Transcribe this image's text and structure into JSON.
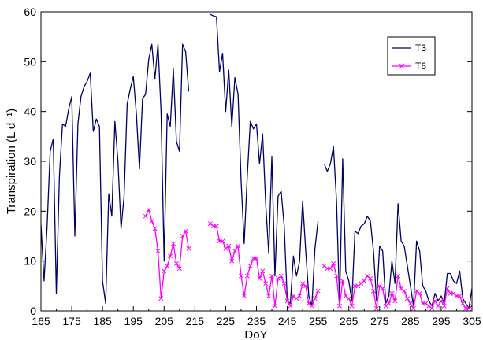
{
  "chart_data": {
    "type": "line",
    "xlabel": "DoY",
    "ylabel": "Transpiration (L d⁻¹)",
    "xlim": [
      165,
      305
    ],
    "ylim": [
      0,
      60
    ],
    "x_ticks": [
      "165",
      "175",
      "185",
      "195",
      "205",
      "215",
      "225",
      "235",
      "245",
      "255",
      "265",
      "275",
      "285",
      "295",
      "305"
    ],
    "y_ticks": [
      "0",
      "10",
      "20",
      "30",
      "40",
      "50",
      "60"
    ],
    "legend": {
      "position": "top-right"
    },
    "series": [
      {
        "name": "T3",
        "color": "#000066",
        "marker": "none",
        "segments": [
          [
            [
              165,
              17.3
            ],
            [
              166,
              6
            ],
            [
              167,
              17
            ],
            [
              168,
              32
            ],
            [
              169,
              34.5
            ],
            [
              170,
              3.5
            ],
            [
              171,
              27
            ],
            [
              172,
              37.5
            ],
            [
              173,
              37
            ],
            [
              174,
              40.5
            ],
            [
              175,
              43
            ],
            [
              176,
              15
            ],
            [
              177,
              37.5
            ],
            [
              178,
              43
            ],
            [
              179,
              45
            ],
            [
              180,
              46
            ],
            [
              181,
              47.7
            ],
            [
              182,
              36
            ],
            [
              183,
              38.5
            ],
            [
              184,
              37
            ],
            [
              185,
              6
            ],
            [
              186,
              1.5
            ],
            [
              187,
              23.5
            ],
            [
              188,
              19
            ],
            [
              189,
              38
            ],
            [
              190,
              30
            ],
            [
              191,
              16.5
            ],
            [
              192,
              23
            ],
            [
              193,
              41.5
            ],
            [
              194,
              44.5
            ],
            [
              195,
              47
            ],
            [
              196,
              39.5
            ],
            [
              197,
              28.5
            ],
            [
              198,
              42.5
            ],
            [
              199,
              43.5
            ],
            [
              200,
              50.5
            ],
            [
              201,
              53.5
            ],
            [
              202,
              46.5
            ],
            [
              203,
              53.5
            ],
            [
              204,
              40
            ],
            [
              205,
              10
            ],
            [
              206,
              39.5
            ],
            [
              207,
              37
            ],
            [
              208,
              48.5
            ],
            [
              209,
              34
            ],
            [
              210,
              32
            ],
            [
              211,
              53.5
            ],
            [
              212,
              52
            ],
            [
              213,
              44
            ]
          ],
          [
            [
              220,
              59.5
            ],
            [
              221,
              59.2
            ],
            [
              222,
              59
            ],
            [
              223,
              48
            ],
            [
              224,
              51.7
            ],
            [
              225,
              40
            ],
            [
              226,
              48.3
            ],
            [
              227,
              37
            ],
            [
              228,
              46.8
            ],
            [
              229,
              43.5
            ],
            [
              230,
              26
            ],
            [
              231,
              13.5
            ],
            [
              232,
              27
            ],
            [
              233,
              38
            ],
            [
              234,
              36.5
            ],
            [
              235,
              37.5
            ],
            [
              236,
              29.5
            ],
            [
              237,
              35.5
            ],
            [
              238,
              21.5
            ],
            [
              239,
              11.5
            ],
            [
              240,
              31
            ],
            [
              241,
              7
            ],
            [
              242,
              23
            ],
            [
              243,
              24
            ],
            [
              244,
              17
            ],
            [
              245,
              2
            ],
            [
              246,
              1.5
            ],
            [
              247,
              11
            ],
            [
              248,
              7
            ],
            [
              249,
              10
            ],
            [
              250,
              22
            ],
            [
              251,
              12
            ],
            [
              252,
              3
            ],
            [
              253,
              1
            ],
            [
              254,
              12.5
            ],
            [
              255,
              18
            ]
          ],
          [
            [
              257,
              29.5
            ],
            [
              258,
              28
            ],
            [
              259,
              29.5
            ],
            [
              260,
              33
            ],
            [
              261,
              22
            ],
            [
              262,
              1.5
            ],
            [
              263,
              30.5
            ],
            [
              264,
              8
            ],
            [
              265,
              6
            ],
            [
              266,
              2
            ],
            [
              267,
              16
            ],
            [
              268,
              15.5
            ],
            [
              269,
              17
            ],
            [
              270,
              17.5
            ],
            [
              271,
              19
            ],
            [
              272,
              18
            ],
            [
              273,
              12
            ],
            [
              274,
              2
            ],
            [
              275,
              13
            ],
            [
              276,
              12
            ],
            [
              277,
              1.5
            ],
            [
              278,
              3
            ],
            [
              279,
              10
            ],
            [
              280,
              5.5
            ],
            [
              281,
              21.5
            ],
            [
              282,
              14
            ],
            [
              283,
              13
            ],
            [
              284,
              9
            ],
            [
              285,
              5
            ],
            [
              286,
              1
            ],
            [
              287,
              14
            ],
            [
              288,
              12
            ],
            [
              289,
              5
            ],
            [
              290,
              4
            ],
            [
              291,
              2
            ],
            [
              292,
              1
            ],
            [
              293,
              3.5
            ],
            [
              294,
              2
            ],
            [
              295,
              3
            ],
            [
              296,
              1.5
            ],
            [
              297,
              7.5
            ],
            [
              298,
              7.5
            ],
            [
              299,
              6
            ],
            [
              300,
              5.5
            ],
            [
              301,
              8
            ],
            [
              302,
              2.5
            ],
            [
              303,
              1.5
            ],
            [
              304,
              0.5
            ],
            [
              305,
              4.5
            ]
          ]
        ]
      },
      {
        "name": "T6",
        "color": "#ff00ff",
        "marker": "x",
        "segments": [
          [
            [
              199,
              19
            ],
            [
              200,
              20.3
            ],
            [
              201,
              18
            ],
            [
              202,
              16.5
            ],
            [
              203,
              12
            ],
            [
              204,
              2.5
            ],
            [
              205,
              8
            ],
            [
              206,
              9
            ],
            [
              207,
              11
            ],
            [
              208,
              13.5
            ],
            [
              209,
              9.5
            ],
            [
              210,
              8.5
            ],
            [
              211,
              15
            ],
            [
              212,
              16
            ],
            [
              213,
              12.5
            ]
          ],
          [
            [
              220,
              17.5
            ],
            [
              221,
              17
            ],
            [
              222,
              17
            ],
            [
              223,
              14
            ],
            [
              224,
              14
            ],
            [
              225,
              12.5
            ],
            [
              226,
              13
            ],
            [
              227,
              10
            ],
            [
              228,
              12
            ],
            [
              229,
              13
            ],
            [
              230,
              7
            ],
            [
              231,
              3
            ],
            [
              232,
              7
            ],
            [
              233,
              9
            ],
            [
              234,
              10.5
            ],
            [
              235,
              10.5
            ],
            [
              236,
              6.5
            ],
            [
              237,
              8
            ],
            [
              238,
              5.5
            ],
            [
              239,
              3
            ],
            [
              240,
              7
            ],
            [
              241,
              1
            ],
            [
              242,
              6.5
            ],
            [
              243,
              7
            ],
            [
              244,
              5.5
            ],
            [
              245,
              2
            ],
            [
              246,
              1
            ],
            [
              247,
              3
            ],
            [
              248,
              2.5
            ],
            [
              249,
              3
            ],
            [
              250,
              5.5
            ],
            [
              251,
              5
            ],
            [
              252,
              1.5
            ],
            [
              253,
              1
            ],
            [
              254,
              2.5
            ],
            [
              255,
              4
            ]
          ],
          [
            [
              257,
              9
            ],
            [
              258,
              8.5
            ],
            [
              259,
              8.5
            ],
            [
              260,
              9.5
            ],
            [
              261,
              7
            ],
            [
              262,
              1
            ],
            [
              263,
              6
            ],
            [
              264,
              3
            ],
            [
              265,
              2.5
            ],
            [
              266,
              1
            ],
            [
              267,
              5
            ],
            [
              268,
              5
            ],
            [
              269,
              5.5
            ],
            [
              270,
              6
            ],
            [
              271,
              7
            ],
            [
              272,
              6.5
            ],
            [
              273,
              4
            ],
            [
              274,
              0.5
            ],
            [
              275,
              5
            ],
            [
              276,
              4.5
            ],
            [
              277,
              1
            ],
            [
              278,
              1.5
            ],
            [
              279,
              3.5
            ],
            [
              280,
              2
            ],
            [
              281,
              7
            ],
            [
              282,
              4.5
            ],
            [
              283,
              4
            ],
            [
              284,
              2.5
            ],
            [
              285,
              1.5
            ],
            [
              286,
              0.5
            ],
            [
              287,
              4
            ],
            [
              288,
              3.5
            ],
            [
              289,
              1.5
            ],
            [
              290,
              1.5
            ],
            [
              291,
              1
            ],
            [
              292,
              0.5
            ],
            [
              293,
              2
            ],
            [
              294,
              1
            ],
            [
              295,
              2
            ],
            [
              296,
              1
            ],
            [
              297,
              4.5
            ],
            [
              298,
              3.5
            ],
            [
              299,
              3.5
            ],
            [
              300,
              3
            ],
            [
              301,
              3
            ],
            [
              302,
              1.5
            ],
            [
              303,
              0.5
            ],
            [
              304,
              0.5
            ],
            [
              305,
              1
            ]
          ]
        ]
      }
    ]
  }
}
